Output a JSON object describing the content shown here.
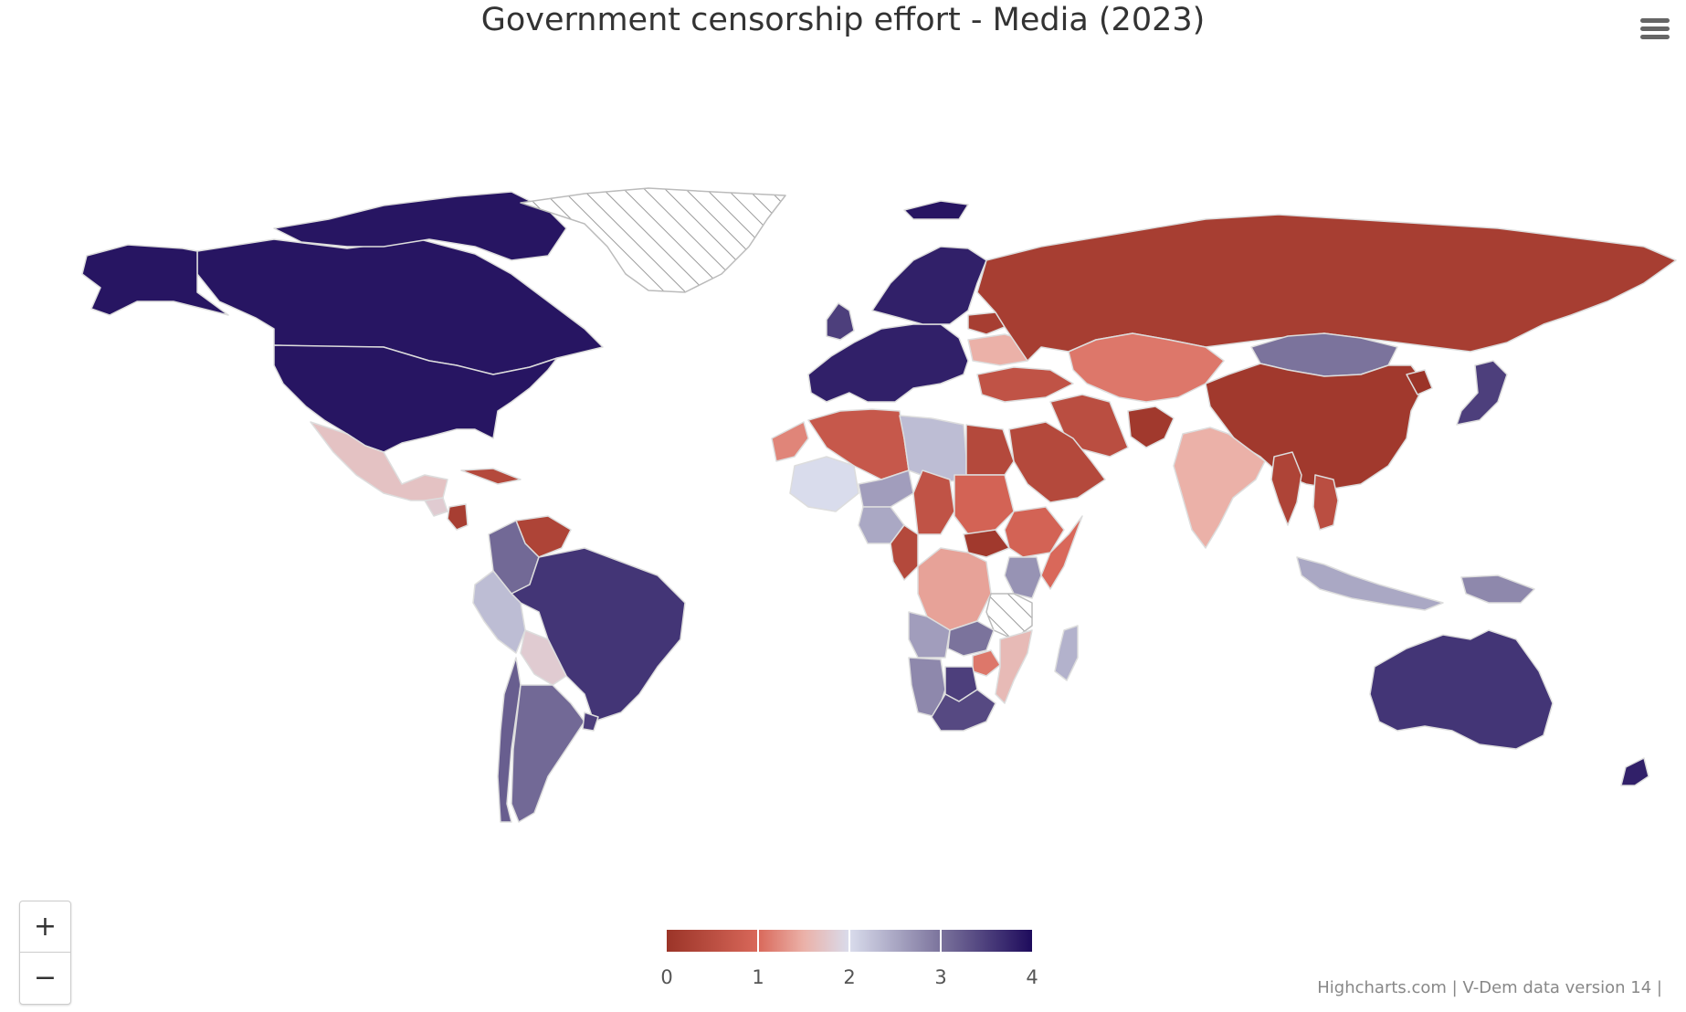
{
  "title": "Government censorship effort - Media (2023)",
  "credits": "Highcharts.com | V-Dem data version 14 |",
  "zoom": {
    "in_label": "+",
    "out_label": "−"
  },
  "colors": {
    "low": "#9b3428",
    "high": "#1e0b5c",
    "no_data_stroke": "#bbbbbb",
    "border": "#dddddd"
  },
  "chart_data": {
    "type": "map",
    "title": "Government censorship effort - Media (2023)",
    "color_axis": {
      "min": 0,
      "max": 4,
      "ticks": [
        "0",
        "1",
        "2",
        "3",
        "4"
      ],
      "stops": [
        {
          "value": 0,
          "color": "#9b3428"
        },
        {
          "value": 1,
          "color": "#d9685a"
        },
        {
          "value": 1.5,
          "color": "#ebb1a8"
        },
        {
          "value": 2,
          "color": "#d9dcec"
        },
        {
          "value": 3,
          "color": "#7b739c"
        },
        {
          "value": 4,
          "color": "#1e0b5c"
        }
      ]
    },
    "regions": [
      {
        "name": "Canada",
        "value": 3.9
      },
      {
        "name": "Alaska",
        "value": 3.9
      },
      {
        "name": "Arctic Archipelago",
        "value": 3.9
      },
      {
        "name": "Greenland",
        "value": null
      },
      {
        "name": "Iceland",
        "value": 3.9
      },
      {
        "name": "United States",
        "value": 3.9
      },
      {
        "name": "Mexico",
        "value": 1.7
      },
      {
        "name": "Guatemala",
        "value": 1.8
      },
      {
        "name": "Nicaragua",
        "value": 0.2
      },
      {
        "name": "Cuba",
        "value": 0.4
      },
      {
        "name": "Venezuela",
        "value": 0.3
      },
      {
        "name": "Colombia",
        "value": 3.1
      },
      {
        "name": "Brazil",
        "value": 3.6
      },
      {
        "name": "Peru",
        "value": 2.3
      },
      {
        "name": "Bolivia",
        "value": 1.8
      },
      {
        "name": "Chile",
        "value": 3.2
      },
      {
        "name": "Argentina",
        "value": 3.1
      },
      {
        "name": "Uruguay",
        "value": 3.5
      },
      {
        "name": "Western Europe",
        "value": 3.8
      },
      {
        "name": "Scandinavia",
        "value": 3.8
      },
      {
        "name": "United Kingdom",
        "value": 3.5
      },
      {
        "name": "Belarus",
        "value": 0.2
      },
      {
        "name": "Ukraine",
        "value": 1.5
      },
      {
        "name": "Russia",
        "value": 0.2
      },
      {
        "name": "Turkey",
        "value": 0.6
      },
      {
        "name": "Kazakhstan",
        "value": 1.1
      },
      {
        "name": "Mongolia",
        "value": 3.0
      },
      {
        "name": "China",
        "value": 0.1
      },
      {
        "name": "Iran",
        "value": 0.5
      },
      {
        "name": "Afghanistan",
        "value": 0.1
      },
      {
        "name": "Saudi Arabia",
        "value": 0.4
      },
      {
        "name": "India",
        "value": 1.5
      },
      {
        "name": "Myanmar",
        "value": 0.3
      },
      {
        "name": "Vietnam",
        "value": 0.5
      },
      {
        "name": "Japan",
        "value": 3.5
      },
      {
        "name": "North Korea",
        "value": 0.0
      },
      {
        "name": "Indonesia",
        "value": 2.5
      },
      {
        "name": "Papua New Guinea",
        "value": 2.8
      },
      {
        "name": "Australia",
        "value": 3.6
      },
      {
        "name": "New Zealand",
        "value": 3.8
      },
      {
        "name": "Algeria",
        "value": 0.7
      },
      {
        "name": "Libya",
        "value": 2.3
      },
      {
        "name": "Egypt",
        "value": 0.4
      },
      {
        "name": "Morocco",
        "value": 1.2
      },
      {
        "name": "Mali",
        "value": 2.0
      },
      {
        "name": "Niger",
        "value": 2.6
      },
      {
        "name": "Chad",
        "value": 0.6
      },
      {
        "name": "Sudan",
        "value": 0.9
      },
      {
        "name": "South Sudan",
        "value": 0.1
      },
      {
        "name": "Ethiopia",
        "value": 0.9
      },
      {
        "name": "Somalia",
        "value": 1.0
      },
      {
        "name": "Kenya",
        "value": 2.7
      },
      {
        "name": "Nigeria",
        "value": 2.5
      },
      {
        "name": "Cameroon",
        "value": 0.4
      },
      {
        "name": "DR Congo",
        "value": 1.4
      },
      {
        "name": "Tanzania",
        "value": null
      },
      {
        "name": "Angola",
        "value": 2.6
      },
      {
        "name": "Namibia",
        "value": 2.8
      },
      {
        "name": "Zambia",
        "value": 3.0
      },
      {
        "name": "Zimbabwe",
        "value": 1.1
      },
      {
        "name": "Mozambique",
        "value": 1.6
      },
      {
        "name": "Botswana",
        "value": 3.5
      },
      {
        "name": "South Africa",
        "value": 3.4
      },
      {
        "name": "Madagascar",
        "value": 2.4
      }
    ]
  }
}
